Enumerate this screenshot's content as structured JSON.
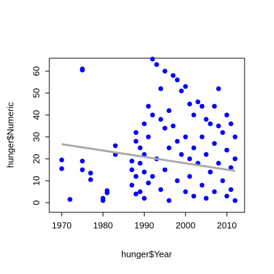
{
  "chart_data": {
    "type": "scatter",
    "x_label": "hunger$Year",
    "y_label": "hunger$Numeric",
    "x": [
      1970,
      1970,
      1972,
      1975,
      1975,
      1975,
      1975,
      1977,
      1977,
      1980,
      1980,
      1981,
      1981,
      1983,
      1983,
      1987,
      1987,
      1987,
      1988,
      1988,
      1988,
      1988,
      1989,
      1989,
      1989,
      1990,
      1990,
      1990,
      1990,
      1991,
      1991,
      1991,
      1992,
      1992,
      1992,
      1993,
      1993,
      1994,
      1994,
      1994,
      1995,
      1995,
      1995,
      1996,
      1996,
      1996,
      1997,
      1997,
      1998,
      1998,
      1998,
      1999,
      1999,
      2000,
      2000,
      2000,
      2001,
      2001,
      2001,
      2002,
      2002,
      2002,
      2003,
      2003,
      2004,
      2004,
      2004,
      2005,
      2005,
      2005,
      2006,
      2006,
      2007,
      2007,
      2007,
      2008,
      2008,
      2008,
      2009,
      2009,
      2010,
      2010,
      2010,
      2011,
      2011,
      2011,
      2012,
      2012,
      2012
    ],
    "values": [
      19.5,
      15.5,
      1.5,
      61,
      60.5,
      19,
      15,
      13.5,
      10.5,
      2,
      1,
      5.5,
      4.5,
      26,
      22,
      19,
      15,
      8,
      32,
      28,
      12,
      4,
      25,
      18,
      5,
      36,
      22,
      14,
      2,
      44,
      30,
      9,
      65.5,
      40,
      12,
      63,
      20,
      52,
      38,
      6,
      60,
      34,
      15,
      42,
      25,
      1,
      58,
      35,
      56,
      28,
      10,
      51,
      22,
      53,
      30,
      5,
      45,
      20,
      12,
      40,
      25,
      3,
      46,
      18,
      44,
      30,
      8,
      38,
      22,
      2,
      36,
      14,
      44,
      27,
      5,
      52,
      35,
      18,
      32,
      10,
      40,
      24,
      3,
      36,
      16,
      6,
      30,
      20,
      1
    ],
    "color": "#0000ff",
    "trend": {
      "x": [
        1970,
        2012
      ],
      "values": [
        26.7,
        14.5
      ],
      "color": "#aaaaaa"
    },
    "xlim": [
      1967,
      2014.3
    ],
    "ylim": [
      -4.4,
      65.9
    ],
    "xticks": [
      1970,
      1980,
      1990,
      2000,
      2010
    ],
    "yticks": [
      0,
      10,
      20,
      30,
      40,
      50,
      60
    ]
  }
}
